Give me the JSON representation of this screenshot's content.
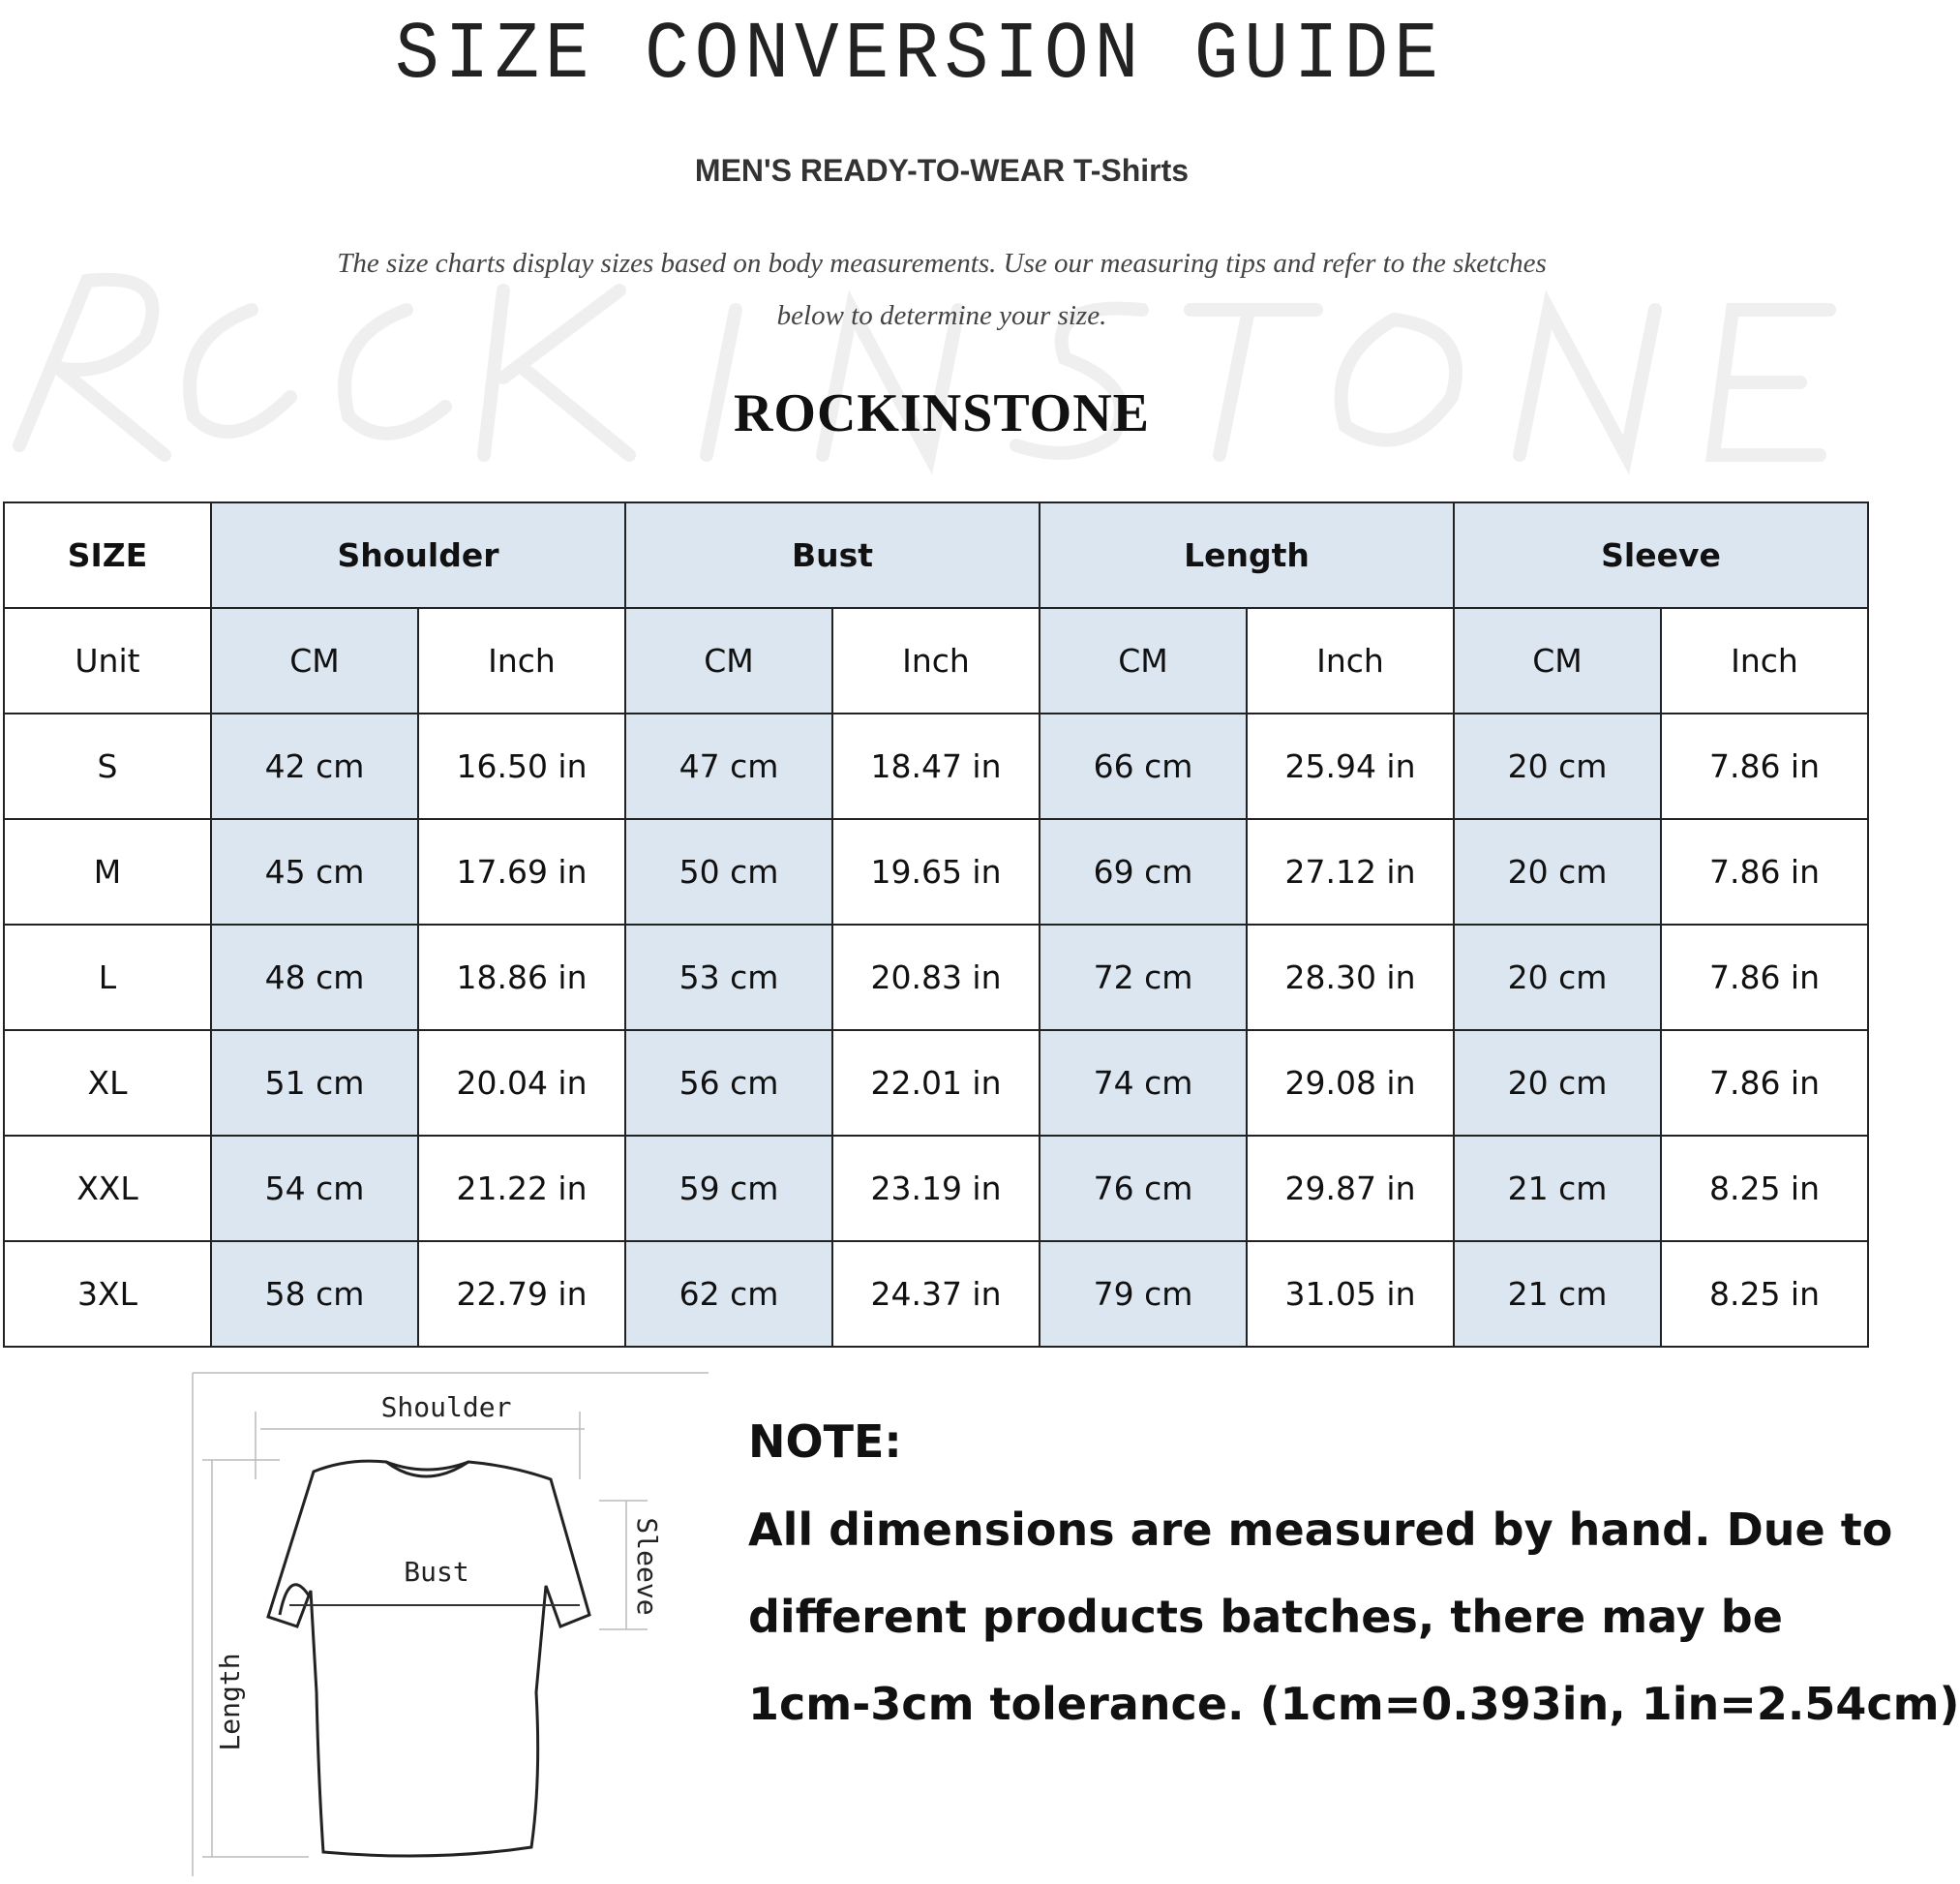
{
  "title": "SIZE CONVERSION GUIDE",
  "subtitle": "MEN'S READY-TO-WEAR T-Shirts",
  "description": [
    "The size charts display sizes based on body measurements. Use our measuring tips and refer to the sketches",
    "below to determine your size."
  ],
  "brand": "ROCKINSTONE",
  "watermark": "ROCKINSTONE",
  "table": {
    "size_header": "SIZE",
    "groups": [
      "Shoulder",
      "Bust",
      "Length",
      "Sleeve"
    ],
    "unit_label": "Unit",
    "units": [
      "CM",
      "Inch",
      "CM",
      "Inch",
      "CM",
      "Inch",
      "CM",
      "Inch"
    ],
    "rows": [
      {
        "size": "S",
        "values": [
          "42 cm",
          "16.50 in",
          "47 cm",
          "18.47 in",
          "66 cm",
          "25.94 in",
          "20 cm",
          "7.86 in"
        ]
      },
      {
        "size": "M",
        "values": [
          "45 cm",
          "17.69 in",
          "50 cm",
          "19.65 in",
          "69 cm",
          "27.12 in",
          "20 cm",
          "7.86 in"
        ]
      },
      {
        "size": "L",
        "values": [
          "48 cm",
          "18.86 in",
          "53 cm",
          "20.83 in",
          "72 cm",
          "28.30 in",
          "20 cm",
          "7.86 in"
        ]
      },
      {
        "size": "XL",
        "values": [
          "51 cm",
          "20.04 in",
          "56 cm",
          "22.01 in",
          "74 cm",
          "29.08 in",
          "20 cm",
          "7.86 in"
        ]
      },
      {
        "size": "XXL",
        "values": [
          "54 cm",
          "21.22 in",
          "59 cm",
          "23.19 in",
          "76 cm",
          "29.87 in",
          "21 cm",
          "8.25 in"
        ]
      },
      {
        "size": "3XL",
        "values": [
          "58 cm",
          "22.79 in",
          "62 cm",
          "24.37 in",
          "79 cm",
          "31.05 in",
          "21 cm",
          "8.25 in"
        ]
      }
    ],
    "accent_color": "#dce6f1"
  },
  "diagram": {
    "shoulder": "Shoulder",
    "bust": "Bust",
    "length": "Length",
    "sleeve": "Sleeve"
  },
  "note": {
    "heading": "NOTE:",
    "lines": [
      "All dimensions are measured by hand. Due to",
      "different products batches, there may be",
      "1cm-3cm tolerance. (1cm=0.393in, 1in=2.54cm)"
    ]
  }
}
